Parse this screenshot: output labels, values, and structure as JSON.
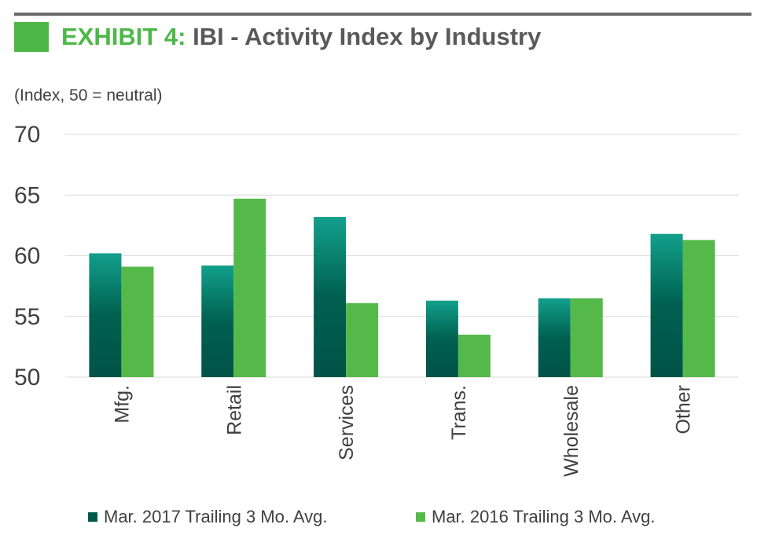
{
  "header": {
    "title_prefix": "EXHIBIT 4:",
    "title_rest": " IBI - Activity Index by Industry",
    "units": "(Index, 50 = neutral)"
  },
  "colors": {
    "accent_green": "#4db848",
    "dark_teal_top": "#12a08c",
    "dark_teal_bottom": "#005346",
    "light_green": "#55b94a",
    "grid": "#d9d9d9",
    "text": "#404040"
  },
  "chart_data": {
    "type": "bar",
    "title": "IBI - Activity Index by Industry",
    "ylabel": "(Index, 50 = neutral)",
    "xlabel": "",
    "ylim": [
      50,
      70
    ],
    "yticks": [
      50,
      55,
      60,
      65,
      70
    ],
    "grid": true,
    "legend_position": "bottom",
    "categories": [
      "Mfg.",
      "Retail",
      "Services",
      "Trans.",
      "Wholesale",
      "Other"
    ],
    "series": [
      {
        "name": "Mar. 2017 Trailing 3 Mo. Avg.",
        "values": [
          60.2,
          59.2,
          63.2,
          56.3,
          56.5,
          61.8
        ]
      },
      {
        "name": "Mar. 2016 Trailing 3 Mo. Avg.",
        "values": [
          59.1,
          64.7,
          56.1,
          53.5,
          56.5,
          61.3
        ]
      }
    ]
  }
}
